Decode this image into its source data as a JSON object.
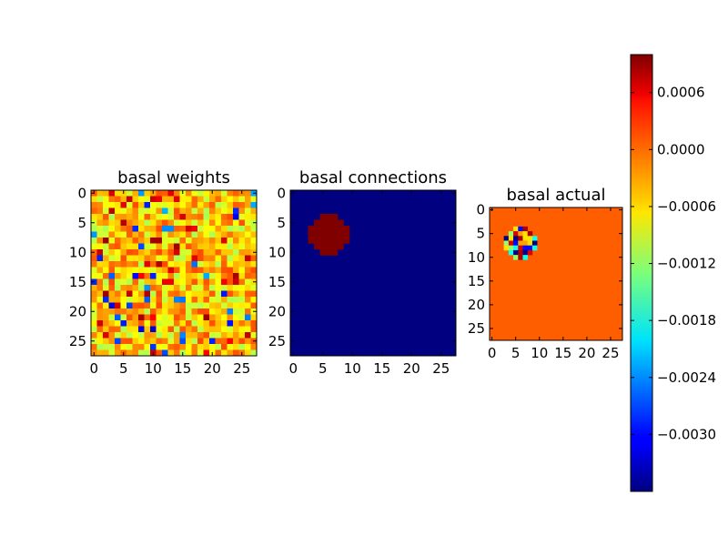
{
  "chart_data": [
    {
      "type": "heatmap",
      "title": "basal weights",
      "grid_size": [
        28,
        28
      ],
      "xticks": [
        0,
        5,
        10,
        15,
        20,
        25
      ],
      "yticks": [
        0,
        5,
        10,
        15,
        20,
        25
      ],
      "xlim": [
        -0.5,
        27.5
      ],
      "ylim": [
        27.5,
        -0.5
      ],
      "pattern": "random noise, values mostly near -0.0006 to 0.0000 (green-yellow) with scattered darker blue and red pixels"
    },
    {
      "type": "heatmap",
      "title": "basal connections",
      "grid_size": [
        28,
        28
      ],
      "xticks": [
        0,
        5,
        10,
        15,
        20,
        25
      ],
      "yticks": [
        0,
        5,
        10,
        15,
        20,
        25
      ],
      "xlim": [
        -0.5,
        27.5
      ],
      "ylim": [
        27.5,
        -0.5
      ],
      "background_value": "min",
      "blob_center": [
        6,
        7
      ],
      "blob_radius": 3.3,
      "blob_value": "max"
    },
    {
      "type": "heatmap",
      "title": "basal actual",
      "grid_size": [
        28,
        28
      ],
      "xticks": [
        0,
        5,
        10,
        15,
        20,
        25
      ],
      "yticks": [
        0,
        5,
        10,
        15,
        20,
        25
      ],
      "xlim": [
        -0.5,
        27.5
      ],
      "ylim": [
        27.5,
        -0.5
      ],
      "background_value": 0.0,
      "blob_center": [
        6,
        7
      ],
      "blob_radius": 3.3
    }
  ],
  "colorbar": {
    "colormap": "jet",
    "vmin": -0.0036,
    "vmax": 0.001,
    "ticks": [
      0.0006,
      0.0,
      -0.0006,
      -0.0012,
      -0.0018,
      -0.0024,
      -0.003
    ],
    "tick_labels": [
      "0.0006",
      "0.0000",
      "−0.0006",
      "−0.0012",
      "−0.0018",
      "−0.0024",
      "−0.0030"
    ]
  }
}
